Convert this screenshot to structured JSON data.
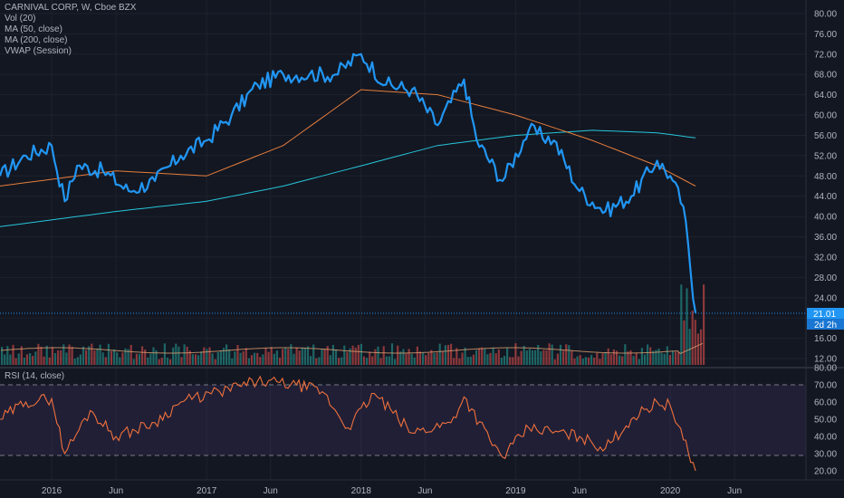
{
  "chart_data": [
    {
      "type": "line",
      "title": "CARNIVAL CORP, W, Cboe BZX",
      "indicators": [
        "Vol (20)",
        "MA (50, close)",
        "MA (200, close)",
        "VWAP (Session)"
      ],
      "y_ticks": [
        "80.00",
        "76.00",
        "72.00",
        "68.00",
        "64.00",
        "60.00",
        "56.00",
        "52.00",
        "48.00",
        "44.00",
        "40.00",
        "36.00",
        "32.00",
        "28.00",
        "24.00",
        "20.00",
        "16.00",
        "12.00"
      ],
      "ylim": [
        12,
        80
      ],
      "x_ticks": [
        "2016",
        "Jun",
        "2017",
        "Jun",
        "2018",
        "Jun",
        "2019",
        "Jun",
        "2020",
        "Jun"
      ],
      "last_price": "21.01",
      "countdown": "2d 2h",
      "colors": {
        "price": "#2196f3",
        "ma50": "#e67e3c",
        "ma200": "#26c6da",
        "rsi": "#f0703c",
        "up": "#26a69a",
        "down": "#ef5350",
        "background": "#131722"
      },
      "series": [
        {
          "name": "close",
          "x": [
            "2015-09",
            "2015-11",
            "2016-01",
            "2016-02",
            "2016-03",
            "2016-05",
            "2016-07",
            "2016-09",
            "2016-11",
            "2017-01",
            "2017-03",
            "2017-05",
            "2017-07",
            "2017-09",
            "2017-11",
            "2018-01",
            "2018-03",
            "2018-05",
            "2018-07",
            "2018-09",
            "2018-10",
            "2018-12",
            "2019-02",
            "2019-04",
            "2019-06",
            "2019-08",
            "2019-10",
            "2019-12",
            "2020-01",
            "2020-02",
            "2020-03"
          ],
          "values": [
            48,
            52,
            54,
            43,
            50,
            49,
            45,
            47,
            52,
            55,
            60,
            66,
            68,
            68,
            68,
            72,
            66,
            65,
            58,
            67,
            55,
            47,
            57,
            55,
            45,
            41,
            44,
            51,
            48,
            42,
            21
          ]
        },
        {
          "name": "MA (50, close)",
          "x": [
            "2015-09",
            "2016-06",
            "2017-01",
            "2017-07",
            "2018-01",
            "2018-07",
            "2019-01",
            "2019-07",
            "2019-12",
            "2020-03"
          ],
          "values": [
            46,
            49,
            48,
            54,
            65,
            64,
            60,
            55,
            50,
            46
          ]
        },
        {
          "name": "MA (200, close)",
          "x": [
            "2015-09",
            "2016-06",
            "2017-01",
            "2017-07",
            "2018-01",
            "2018-07",
            "2019-01",
            "2019-07",
            "2019-12",
            "2020-03"
          ],
          "values": [
            38,
            41,
            43,
            46,
            50,
            54,
            56,
            57,
            56.5,
            55.5
          ]
        }
      ]
    },
    {
      "type": "line",
      "title": "RSI (14, close)",
      "y_ticks": [
        "80.00",
        "70.00",
        "60.00",
        "50.00",
        "40.00",
        "30.00",
        "20.00"
      ],
      "ylim": [
        20,
        80
      ],
      "bands": [
        30,
        70
      ],
      "series": [
        {
          "name": "RSI",
          "x": [
            "2015-09",
            "2015-11",
            "2016-01",
            "2016-02",
            "2016-04",
            "2016-06",
            "2016-09",
            "2016-11",
            "2017-02",
            "2017-05",
            "2017-08",
            "2017-10",
            "2017-12",
            "2018-02",
            "2018-05",
            "2018-08",
            "2018-09",
            "2018-11",
            "2018-12",
            "2019-02",
            "2019-06",
            "2019-08",
            "2019-10",
            "2019-12",
            "2020-01",
            "2020-02",
            "2020-03"
          ],
          "values": [
            50,
            60,
            62,
            30,
            55,
            40,
            48,
            60,
            66,
            72,
            70,
            66,
            45,
            65,
            42,
            48,
            63,
            38,
            28,
            45,
            40,
            33,
            50,
            60,
            58,
            38,
            20
          ]
        }
      ]
    }
  ]
}
